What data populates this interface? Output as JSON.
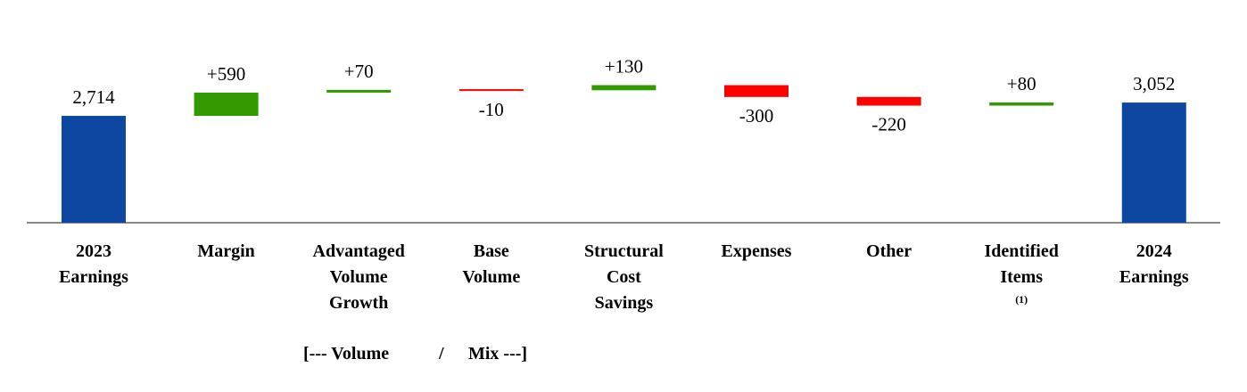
{
  "chart_data": {
    "type": "waterfall",
    "title": "",
    "categories": [
      {
        "lines": [
          "2023",
          "Earnings"
        ],
        "footnote": ""
      },
      {
        "lines": [
          "Margin"
        ],
        "footnote": ""
      },
      {
        "lines": [
          "Advantaged",
          "Volume",
          "Growth"
        ],
        "footnote": ""
      },
      {
        "lines": [
          "Base",
          "Volume"
        ],
        "footnote": ""
      },
      {
        "lines": [
          "Structural",
          "Cost",
          "Savings"
        ],
        "footnote": ""
      },
      {
        "lines": [
          "Expenses"
        ],
        "footnote": ""
      },
      {
        "lines": [
          "Other"
        ],
        "footnote": ""
      },
      {
        "lines": [
          "Identified",
          "Items"
        ],
        "footnote": "(1)"
      },
      {
        "lines": [
          "2024",
          "Earnings"
        ],
        "footnote": ""
      }
    ],
    "values": [
      2714,
      590,
      70,
      -10,
      130,
      -300,
      -220,
      80,
      3052
    ],
    "kinds": [
      "total",
      "delta",
      "delta",
      "delta",
      "delta",
      "delta",
      "delta",
      "delta",
      "total"
    ],
    "labels": [
      "2,714",
      "+590",
      "+70",
      "-10",
      "+130",
      "-300",
      "-220",
      "+80",
      "3,052"
    ],
    "group_note": {
      "left": "[--- Volume",
      "sep": "/",
      "right": "Mix ---]"
    },
    "colors": {
      "total": "#0d47a1",
      "increase": "#339900",
      "decrease": "#ff0000",
      "axis": "#888888"
    },
    "grid": false
  }
}
